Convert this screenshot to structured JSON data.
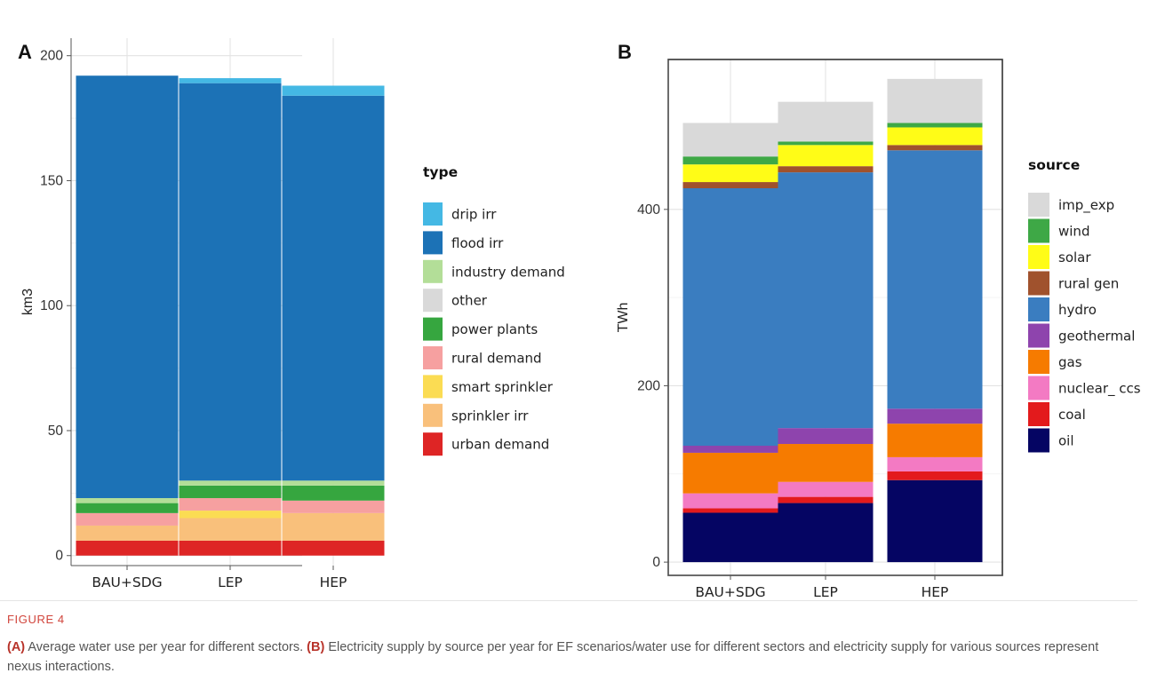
{
  "figure": {
    "label": "FIGURE 4",
    "caption": {
      "a_tag": "(A)",
      "a_text": " Average water use per year for different sectors. ",
      "b_tag": "(B)",
      "b_text": " Electricity supply by source per year for EF scenarios/water use for different sectors and electricity supply for various sources represent nexus interactions."
    }
  },
  "chart_data": [
    {
      "panel_label": "A",
      "type": "bar",
      "stacked": true,
      "categories": [
        "BAU+SDG",
        "LEP",
        "HEP"
      ],
      "ylabel": "km3",
      "xlabel": "",
      "ylim": [
        -4,
        207
      ],
      "yticks": [
        0,
        50,
        100,
        150,
        200
      ],
      "grid": true,
      "border": false,
      "legend": {
        "title": "type",
        "position": "right"
      },
      "series": [
        {
          "name": "drip irr",
          "color": "#44b8e4",
          "values": [
            0,
            2,
            4
          ]
        },
        {
          "name": "flood irr",
          "color": "#1c72b6",
          "values": [
            169,
            159,
            154
          ]
        },
        {
          "name": "industry demand",
          "color": "#b3de98",
          "values": [
            2,
            2,
            2
          ]
        },
        {
          "name": "other",
          "color": "#d9d9d9",
          "values": [
            0,
            0,
            0
          ]
        },
        {
          "name": "power plants",
          "color": "#36a63f",
          "values": [
            4,
            5,
            6
          ]
        },
        {
          "name": "rural demand",
          "color": "#f6a0a0",
          "values": [
            5,
            5,
            5
          ]
        },
        {
          "name": "smart sprinkler",
          "color": "#fbdc53",
          "values": [
            0,
            3,
            0
          ]
        },
        {
          "name": "sprinkler irr",
          "color": "#f9c07b",
          "values": [
            6,
            9,
            11
          ]
        },
        {
          "name": "urban demand",
          "color": "#de2525",
          "values": [
            6,
            6,
            6
          ]
        }
      ]
    },
    {
      "panel_label": "B",
      "type": "bar",
      "stacked": true,
      "categories": [
        "BAU+SDG",
        "LEP",
        "HEP"
      ],
      "ylabel": "TWh",
      "xlabel": "",
      "ylim": [
        -15,
        570
      ],
      "yticks": [
        0,
        200,
        400
      ],
      "grid": true,
      "border": true,
      "legend": {
        "title": "source",
        "position": "right"
      },
      "series": [
        {
          "name": "imp_exp",
          "color": "#d9d9d9",
          "values": [
            38,
            45,
            50
          ]
        },
        {
          "name": "wind",
          "color": "#3ea846",
          "values": [
            9,
            4,
            5
          ]
        },
        {
          "name": "solar",
          "color": "#fffc17",
          "values": [
            20,
            24,
            20
          ]
        },
        {
          "name": "rural gen",
          "color": "#a0522d",
          "values": [
            7,
            7,
            6
          ]
        },
        {
          "name": "hydro",
          "color": "#3a7dc0",
          "values": [
            292,
            290,
            293
          ]
        },
        {
          "name": "geothermal",
          "color": "#8e44ad",
          "values": [
            8,
            18,
            17
          ]
        },
        {
          "name": "gas",
          "color": "#f67b00",
          "values": [
            46,
            43,
            38
          ]
        },
        {
          "name": "nuclear_ ccs",
          "color": "#f37ac3",
          "values": [
            17,
            17,
            16
          ]
        },
        {
          "name": "coal",
          "color": "#e31a1c",
          "values": [
            5,
            7,
            10
          ]
        },
        {
          "name": "oil",
          "color": "#050563",
          "values": [
            56,
            67,
            93
          ]
        }
      ]
    }
  ]
}
